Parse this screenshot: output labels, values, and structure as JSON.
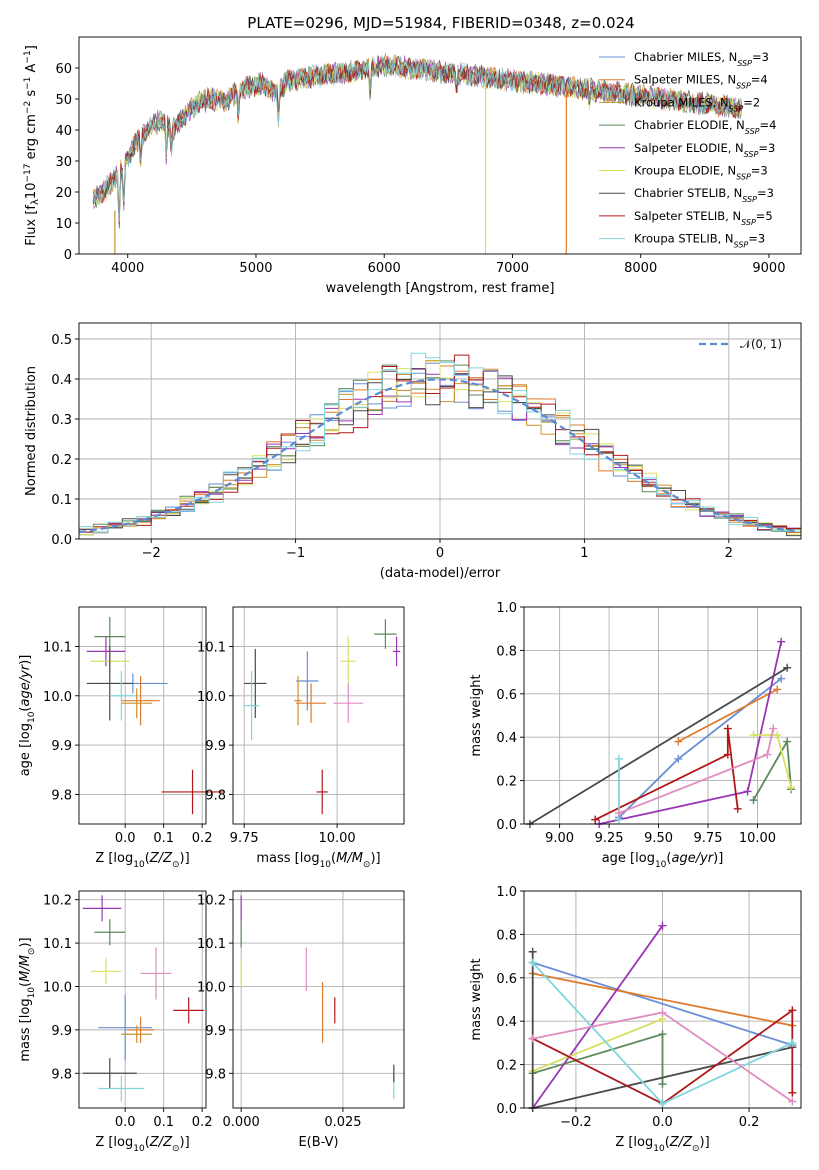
{
  "figure": {
    "title": "PLATE=0296, MJD=51984, FIBERID=0348, z=0.024"
  },
  "series_colors": [
    "#6a8fd6",
    "#de7a2c",
    "#c9912c",
    "#5a8a5a",
    "#9a36b5",
    "#d8e060",
    "#4a4a4a",
    "#b01818",
    "#80d6dc"
  ],
  "chart_data": [
    {
      "id": "spectrum",
      "type": "line",
      "title": "PLATE=0296, MJD=51984, FIBERID=0348, z=0.024",
      "xlabel": "wavelength [Angstrom, rest frame]",
      "ylabel": "Flux [f_λ10^-17 erg cm^-2 s^-1 A^-1]",
      "xlim": [
        3620,
        9250
      ],
      "ylim": [
        0,
        70
      ],
      "xticks": [
        4000,
        5000,
        6000,
        7000,
        8000,
        9000
      ],
      "yticks": [
        0,
        10,
        20,
        30,
        40,
        50,
        60
      ],
      "grid": false,
      "legend_position": "upper right",
      "series": [
        {
          "name": "Chabrier MILES, N_SSP=3"
        },
        {
          "name": "Salpeter MILES, N_SSP=4"
        },
        {
          "name": "Kroupa MILES, N_SSP=2"
        },
        {
          "name": "Chabrier ELODIE, N_SSP=4"
        },
        {
          "name": "Salpeter ELODIE, N_SSP=3"
        },
        {
          "name": "Kroupa ELODIE, N_SSP=3"
        },
        {
          "name": "Chabrier STELIB, N_SSP=3"
        },
        {
          "name": "Salpeter STELIB, N_SSP=5"
        },
        {
          "name": "Kroupa STELIB, N_SSP=3"
        }
      ],
      "continuum": {
        "x": [
          3750,
          3850,
          3950,
          4050,
          4150,
          4250,
          4350,
          4450,
          4550,
          4650,
          4750,
          4850,
          4950,
          5050,
          5150,
          5250,
          5400,
          5600,
          5800,
          6000,
          6200,
          6400,
          6600,
          6800,
          7000,
          7200,
          7400,
          7600,
          7800,
          8000,
          8200,
          8400,
          8600,
          8800
        ],
        "y": [
          18,
          22,
          27,
          35,
          40,
          43,
          40,
          45,
          49,
          50,
          49,
          52,
          54,
          55,
          52,
          56,
          57,
          58,
          59,
          61,
          60,
          59,
          58,
          57,
          56,
          55,
          54,
          53,
          52,
          51,
          50,
          49,
          48,
          47
        ]
      },
      "drop_lines": [
        {
          "x": 3900,
          "y_from": 14,
          "y_to": 0,
          "series": 2
        },
        {
          "x": 6790,
          "y_from": 57,
          "y_to": 0,
          "series": 5
        },
        {
          "x": 7420,
          "y_from": 54,
          "y_to": 0,
          "series": 1
        }
      ]
    },
    {
      "id": "residuals",
      "type": "histogram",
      "xlabel": "(data-model)/error",
      "ylabel": "Normed distribution",
      "xlim": [
        -2.5,
        2.5
      ],
      "ylim": [
        0,
        0.54
      ],
      "xticks": [
        -2,
        -1,
        0,
        1,
        2
      ],
      "yticks": [
        0.0,
        0.1,
        0.2,
        0.3,
        0.4,
        0.5
      ],
      "grid": true,
      "legend_position": "upper right",
      "reference_curve": {
        "label": "𝒩(0, 1)",
        "mean": 0,
        "sigma": 1
      },
      "bin_width": 0.1,
      "bin_range": [
        -2.5,
        2.5
      ]
    },
    {
      "id": "age_vs_Z",
      "type": "scatter_errorbar",
      "xlabel": "Z [log10(Z/Z⊙)]",
      "ylabel": "age [log10(age/yr)]",
      "xlim": [
        -0.12,
        0.21
      ],
      "ylim": [
        9.74,
        10.18
      ],
      "xticks": [
        -0.0,
        0.1,
        0.2
      ],
      "xticklabels": [
        "0.0",
        "0.1",
        "0.2"
      ],
      "yticks": [
        9.8,
        9.9,
        10.0,
        10.1
      ],
      "grid": true,
      "points": [
        {
          "series": 0,
          "x": 0.02,
          "xerr": 0.09,
          "y": 10.025,
          "yerr": 0.02
        },
        {
          "series": 1,
          "x": 0.04,
          "xerr": 0.05,
          "y": 9.99,
          "yerr": 0.05
        },
        {
          "series": 2,
          "x": 0.03,
          "xerr": 0.04,
          "y": 9.985,
          "yerr": 0.03
        },
        {
          "series": 3,
          "x": -0.04,
          "xerr": 0.04,
          "y": 10.12,
          "yerr": 0.04
        },
        {
          "series": 4,
          "x": -0.05,
          "xerr": 0.05,
          "y": 10.09,
          "yerr": 0.03
        },
        {
          "series": 5,
          "x": -0.04,
          "xerr": 0.05,
          "y": 10.07,
          "yerr": 0.03
        },
        {
          "series": 6,
          "x": -0.04,
          "xerr": 0.06,
          "y": 10.025,
          "yerr": 0.075
        },
        {
          "series": 7,
          "x": 0.175,
          "xerr": 0.08,
          "y": 9.805,
          "yerr": 0.045
        },
        {
          "series": 8,
          "x": -0.01,
          "xerr": 0.03,
          "y": 10.0,
          "yerr": 0.05
        }
      ]
    },
    {
      "id": "age_vs_mass",
      "type": "scatter_errorbar",
      "xlabel": "mass [log10(M/M⊙)]",
      "ylabel": "",
      "xlim": [
        9.72,
        10.18
      ],
      "ylim": [
        9.74,
        10.18
      ],
      "xticks": [
        9.75,
        10.0
      ],
      "xticklabels": [
        "9.75",
        "10.00"
      ],
      "yticks": [
        9.8,
        9.9,
        10.0,
        10.1
      ],
      "grid": true,
      "points": [
        {
          "series": 0,
          "x": 9.92,
          "xerr": 0.03,
          "y": 10.03,
          "yerr": 0.06
        },
        {
          "series": 1,
          "x": 9.93,
          "xerr": 0.04,
          "y": 9.985,
          "yerr": 0.04
        },
        {
          "series": 2,
          "x": 9.895,
          "xerr": 0.01,
          "y": 9.99,
          "yerr": 0.05
        },
        {
          "series": 3,
          "x": 10.13,
          "xerr": 0.03,
          "y": 10.125,
          "yerr": 0.03
        },
        {
          "series": 4,
          "x": 10.16,
          "xerr": 0.01,
          "y": 10.09,
          "yerr": 0.03
        },
        {
          "series": 5,
          "x": 10.03,
          "xerr": 0.02,
          "y": 10.07,
          "yerr": 0.05
        },
        {
          "series": 6,
          "x": 9.78,
          "xerr": 0.03,
          "y": 10.025,
          "yerr": 0.07
        },
        {
          "series": 7,
          "x": 9.96,
          "xerr": 0.015,
          "y": 9.805,
          "yerr": 0.045
        },
        {
          "series": 8,
          "x": 9.77,
          "xerr": 0.02,
          "y": 9.98,
          "yerr": 0.07
        },
        {
          "series": 9,
          "x": 10.03,
          "xerr": 0.04,
          "y": 9.985,
          "yerr": 0.04
        }
      ]
    },
    {
      "id": "massweight_vs_age",
      "type": "line",
      "xlabel": "age [log10(age/yr)]",
      "ylabel": "mass weight",
      "xlim": [
        8.82,
        10.22
      ],
      "ylim": [
        0,
        1.0
      ],
      "xticks": [
        9.0,
        9.25,
        9.5,
        9.75,
        10.0
      ],
      "xticklabels": [
        "9.00",
        "9.25",
        "9.50",
        "9.75",
        "10.00"
      ],
      "yticks": [
        0.0,
        0.2,
        0.4,
        0.6,
        0.8,
        1.0
      ],
      "grid": true,
      "series": [
        {
          "series": 0,
          "x": [
            9.3,
            9.6,
            10.12
          ],
          "y": [
            0.03,
            0.3,
            0.67
          ]
        },
        {
          "series": 1,
          "x": [
            9.6,
            10.1
          ],
          "y": [
            0.38,
            0.62
          ]
        },
        {
          "series": 3,
          "x": [
            9.98,
            10.15,
            10.17
          ],
          "y": [
            0.11,
            0.38,
            0.16
          ]
        },
        {
          "series": 4,
          "x": [
            9.2,
            9.95,
            10.12
          ],
          "y": [
            0.0,
            0.15,
            0.84
          ]
        },
        {
          "series": 5,
          "x": [
            9.98,
            10.1,
            10.17
          ],
          "y": [
            0.41,
            0.41,
            0.17
          ]
        },
        {
          "series": 6,
          "x": [
            8.85,
            10.15
          ],
          "y": [
            0.0,
            0.72
          ]
        },
        {
          "series": 7,
          "x": [
            9.18,
            9.85,
            9.85,
            9.9
          ],
          "y": [
            0.02,
            0.32,
            0.44,
            0.07
          ]
        },
        {
          "series": 8,
          "x": [
            9.3,
            9.3
          ],
          "y": [
            0.02,
            0.3
          ]
        },
        {
          "series": 9,
          "x": [
            9.3,
            10.05,
            10.08
          ],
          "y": [
            0.05,
            0.32,
            0.44
          ]
        }
      ]
    },
    {
      "id": "mass_vs_Z",
      "type": "scatter_errorbar",
      "xlabel": "Z [log10(Z/Z⊙)]",
      "ylabel": "mass [log10(M/M⊙)]",
      "xlim": [
        -0.12,
        0.21
      ],
      "ylim": [
        9.72,
        10.22
      ],
      "xticks": [
        0.0,
        0.1,
        0.2
      ],
      "xticklabels": [
        "0.0",
        "0.1",
        "0.2"
      ],
      "yticks": [
        9.8,
        9.9,
        10.0,
        10.1,
        10.2
      ],
      "grid": true,
      "points": [
        {
          "series": 0,
          "x": -0.0,
          "xerr": 0.07,
          "y": 9.905,
          "yerr": 0.075
        },
        {
          "series": 1,
          "x": 0.04,
          "xerr": 0.035,
          "y": 9.9,
          "yerr": 0.03
        },
        {
          "series": 2,
          "x": 0.03,
          "xerr": 0.04,
          "y": 9.89,
          "yerr": 0.02
        },
        {
          "series": 3,
          "x": -0.04,
          "xerr": 0.04,
          "y": 10.125,
          "yerr": 0.03
        },
        {
          "series": 4,
          "x": -0.06,
          "xerr": 0.05,
          "y": 10.18,
          "yerr": 0.03
        },
        {
          "series": 5,
          "x": -0.05,
          "xerr": 0.04,
          "y": 10.035,
          "yerr": 0.03
        },
        {
          "series": 6,
          "x": -0.04,
          "xerr": 0.07,
          "y": 9.8,
          "yerr": 0.035
        },
        {
          "series": 7,
          "x": 0.165,
          "xerr": 0.04,
          "y": 9.945,
          "yerr": 0.03
        },
        {
          "series": 8,
          "x": -0.01,
          "xerr": 0.06,
          "y": 9.765,
          "yerr": 0.03
        },
        {
          "series": 9,
          "x": 0.08,
          "xerr": 0.04,
          "y": 10.03,
          "yerr": 0.06
        }
      ]
    },
    {
      "id": "mass_vs_ebv",
      "type": "scatter_errorbar",
      "xlabel": "E(B-V)",
      "ylabel": "",
      "xlim": [
        -0.002,
        0.04
      ],
      "ylim": [
        9.72,
        10.22
      ],
      "xticks": [
        0.0,
        0.025
      ],
      "xticklabels": [
        "0.000",
        "0.025"
      ],
      "yticks": [
        9.8,
        9.9,
        10.0,
        10.1,
        10.2
      ],
      "grid": true,
      "points": [
        {
          "series": 4,
          "x": 0.0,
          "xerr": 0,
          "y": 10.18,
          "yerr": 0.03
        },
        {
          "series": 3,
          "x": 0.0,
          "xerr": 0,
          "y": 10.12,
          "yerr": 0.03
        },
        {
          "series": 5,
          "x": 0.0,
          "xerr": 0,
          "y": 10.03,
          "yerr": 0.03
        },
        {
          "series": 9,
          "x": 0.016,
          "xerr": 0,
          "y": 10.04,
          "yerr": 0.05
        },
        {
          "series": 1,
          "x": 0.02,
          "xerr": 0,
          "y": 9.94,
          "yerr": 0.07
        },
        {
          "series": 7,
          "x": 0.023,
          "xerr": 0,
          "y": 9.945,
          "yerr": 0.03
        },
        {
          "series": 8,
          "x": 0.0375,
          "xerr": 0,
          "y": 9.77,
          "yerr": 0.03
        },
        {
          "series": 6,
          "x": 0.0375,
          "xerr": 0,
          "y": 9.8,
          "yerr": 0.02
        }
      ]
    },
    {
      "id": "massweight_vs_Z",
      "type": "line",
      "xlabel": "Z [log10(Z/Z⊙)]",
      "ylabel": "mass weight",
      "xlim": [
        -0.32,
        0.32
      ],
      "ylim": [
        0,
        1.0
      ],
      "xticks": [
        -0.2,
        0.0,
        0.2
      ],
      "xticklabels": [
        "−0.2",
        "0.0",
        "0.2"
      ],
      "yticks": [
        0.0,
        0.2,
        0.4,
        0.6,
        0.8,
        1.0
      ],
      "grid": true,
      "series": [
        {
          "series": 0,
          "x": [
            -0.3,
            0.3
          ],
          "y": [
            0.67,
            0.29
          ]
        },
        {
          "series": 1,
          "x": [
            -0.3,
            0.3
          ],
          "y": [
            0.62,
            0.38
          ]
        },
        {
          "series": 3,
          "x": [
            -0.3,
            0.0,
            0.0
          ],
          "y": [
            0.16,
            0.34,
            0.11
          ]
        },
        {
          "series": 4,
          "x": [
            -0.3,
            0.0
          ],
          "y": [
            0.0,
            0.84
          ]
        },
        {
          "series": 5,
          "x": [
            -0.3,
            0.0
          ],
          "y": [
            0.17,
            0.41
          ]
        },
        {
          "series": 6,
          "x": [
            -0.3,
            -0.3,
            0.3
          ],
          "y": [
            0.72,
            0.0,
            0.28
          ]
        },
        {
          "series": 7,
          "x": [
            -0.3,
            0.0,
            0.3,
            0.3
          ],
          "y": [
            0.32,
            0.02,
            0.45,
            0.07
          ]
        },
        {
          "series": 8,
          "x": [
            -0.3,
            0.0,
            0.3
          ],
          "y": [
            0.67,
            0.02,
            0.3
          ]
        },
        {
          "series": 9,
          "x": [
            -0.3,
            0.0,
            0.3
          ],
          "y": [
            0.32,
            0.44,
            0.03
          ]
        }
      ]
    }
  ]
}
